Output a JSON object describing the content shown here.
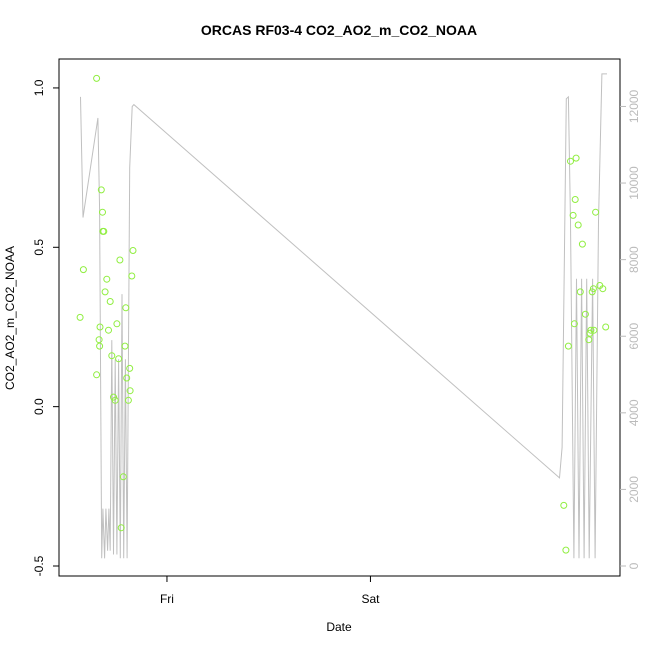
{
  "chart_data": {
    "type": "scatter",
    "title": "ORCAS RF03-4 CO2_AO2_m_CO2_NOAA",
    "xlabel": "Date",
    "ylabel": "CO2_AO2_m_CO2_NOAA",
    "x_ticks": [
      "Fri",
      "Sat"
    ],
    "y_ticks": [
      "-0.5",
      "0.0",
      "0.5",
      "1.0"
    ],
    "y_tick_values": [
      -0.5,
      0.0,
      0.5,
      1.0
    ],
    "ylim": [
      -0.5,
      1.05
    ],
    "right_ticks": [
      "0",
      "2000",
      "4000",
      "6000",
      "8000",
      "10000",
      "12000"
    ],
    "right_tick_values": [
      0,
      2000,
      4000,
      6000,
      8000,
      10000,
      12000
    ],
    "right_ylim": [
      0,
      12900
    ],
    "colors": {
      "points": "#90EE40",
      "line": "#c0c0c0",
      "axis": "#000000",
      "right_axis": "#bbbbbb"
    },
    "x_units": "hours since Fri 00:00",
    "xlim": [
      -11.2,
      51.9
    ],
    "points": [
      [
        -10.25,
        0.28
      ],
      [
        -9.85,
        0.43
      ],
      [
        -8.3,
        1.03
      ],
      [
        -8.3,
        0.1
      ],
      [
        -8.0,
        0.21
      ],
      [
        -7.95,
        0.19
      ],
      [
        -7.9,
        0.25
      ],
      [
        -7.75,
        0.68
      ],
      [
        -7.6,
        0.61
      ],
      [
        -7.55,
        0.55
      ],
      [
        -7.45,
        0.55
      ],
      [
        -7.3,
        0.36
      ],
      [
        -7.1,
        0.4
      ],
      [
        -6.9,
        0.24
      ],
      [
        -6.7,
        0.33
      ],
      [
        -6.5,
        0.16
      ],
      [
        -6.3,
        0.03
      ],
      [
        -6.1,
        0.02
      ],
      [
        -5.9,
        0.26
      ],
      [
        -5.7,
        0.15
      ],
      [
        -5.55,
        0.46
      ],
      [
        -5.4,
        -0.38
      ],
      [
        -5.15,
        -0.22
      ],
      [
        -4.95,
        0.19
      ],
      [
        -4.85,
        0.31
      ],
      [
        -4.75,
        0.09
      ],
      [
        -4.55,
        0.02
      ],
      [
        -4.4,
        0.12
      ],
      [
        -4.35,
        0.05
      ],
      [
        -4.15,
        0.41
      ],
      [
        -4.0,
        0.49
      ],
      [
        46.8,
        -0.31
      ],
      [
        47.05,
        -0.45
      ],
      [
        47.35,
        0.19
      ],
      [
        47.6,
        0.77
      ],
      [
        47.9,
        0.6
      ],
      [
        48.05,
        0.26
      ],
      [
        48.15,
        0.65
      ],
      [
        48.25,
        0.78
      ],
      [
        48.5,
        0.57
      ],
      [
        48.75,
        0.36
      ],
      [
        49.0,
        0.51
      ],
      [
        49.35,
        0.29
      ],
      [
        49.75,
        0.21
      ],
      [
        49.9,
        0.23
      ],
      [
        50.0,
        0.24
      ],
      [
        50.15,
        0.36
      ],
      [
        50.3,
        0.37
      ],
      [
        50.35,
        0.24
      ],
      [
        50.55,
        0.61
      ],
      [
        51.05,
        0.38
      ],
      [
        51.4,
        0.37
      ],
      [
        51.75,
        0.25
      ]
    ],
    "line_series": [
      [
        -10.2,
        12250
      ],
      [
        -9.9,
        9100
      ],
      [
        -8.15,
        11700
      ],
      [
        -7.95,
        9300
      ],
      [
        -7.7,
        200
      ],
      [
        -7.55,
        1500
      ],
      [
        -7.35,
        200
      ],
      [
        -7.2,
        1500
      ],
      [
        -7.0,
        400
      ],
      [
        -6.85,
        1500
      ],
      [
        -6.7,
        400
      ],
      [
        -6.5,
        5900
      ],
      [
        -6.3,
        300
      ],
      [
        -6.1,
        5400
      ],
      [
        -5.9,
        300
      ],
      [
        -5.7,
        5400
      ],
      [
        -5.5,
        200
      ],
      [
        -5.3,
        7100
      ],
      [
        -5.1,
        200
      ],
      [
        -4.9,
        5400
      ],
      [
        -4.7,
        200
      ],
      [
        -4.4,
        10400
      ],
      [
        -4.1,
        12000
      ],
      [
        -3.9,
        12050
      ],
      [
        46.3,
        2300
      ],
      [
        46.6,
        3100
      ],
      [
        47.1,
        12200
      ],
      [
        47.35,
        12250
      ],
      [
        47.6,
        9000
      ],
      [
        48.0,
        200
      ],
      [
        48.3,
        7500
      ],
      [
        48.6,
        200
      ],
      [
        48.9,
        7500
      ],
      [
        49.2,
        200
      ],
      [
        49.5,
        7500
      ],
      [
        49.8,
        200
      ],
      [
        50.2,
        7500
      ],
      [
        50.5,
        200
      ],
      [
        50.9,
        9000
      ],
      [
        51.3,
        12850
      ],
      [
        51.9,
        12850
      ]
    ]
  }
}
